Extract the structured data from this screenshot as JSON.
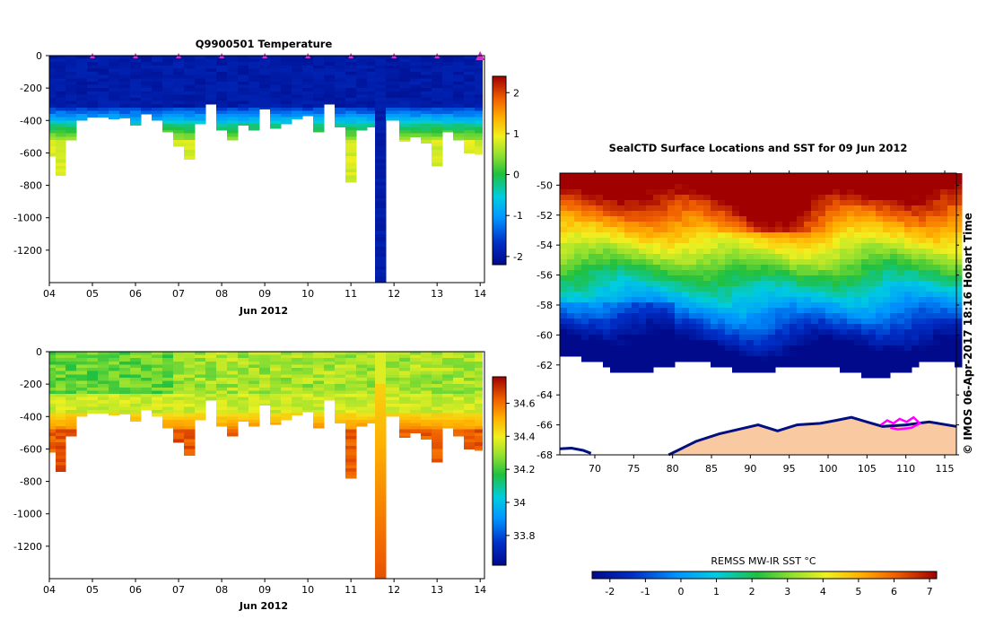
{
  "chart_data": [
    {
      "type": "heatmap",
      "title": "Q9900501  Temperature",
      "xlabel": "Jun 2012",
      "ylabel": "",
      "x_ticks": [
        "04",
        "05",
        "06",
        "07",
        "08",
        "09",
        "10",
        "11",
        "12",
        "13",
        "14"
      ],
      "xlim": [
        4,
        14.1
      ],
      "y_ticks": [
        "0",
        "-200",
        "-400",
        "-600",
        "-800",
        "-1000",
        "-1200"
      ],
      "ylim": [
        -1400,
        0
      ],
      "surfacing_markers_day": [
        5,
        6,
        7,
        8,
        9,
        10,
        11,
        12,
        13,
        14
      ],
      "colorbar": {
        "ticks": [
          "2",
          "1",
          "0",
          "-1",
          "-2"
        ],
        "range": [
          -2.2,
          2.4
        ]
      },
      "profiles": [
        {
          "day": 4.05,
          "max_depth": 620
        },
        {
          "day": 4.25,
          "max_depth": 740
        },
        {
          "day": 4.5,
          "max_depth": 520
        },
        {
          "day": 4.75,
          "max_depth": 400
        },
        {
          "day": 5.0,
          "max_depth": 380
        },
        {
          "day": 5.25,
          "max_depth": 380
        },
        {
          "day": 5.5,
          "max_depth": 390
        },
        {
          "day": 5.75,
          "max_depth": 385
        },
        {
          "day": 6.0,
          "max_depth": 430
        },
        {
          "day": 6.25,
          "max_depth": 360
        },
        {
          "day": 6.5,
          "max_depth": 400
        },
        {
          "day": 6.75,
          "max_depth": 470
        },
        {
          "day": 7.0,
          "max_depth": 560
        },
        {
          "day": 7.25,
          "max_depth": 640
        },
        {
          "day": 7.5,
          "max_depth": 420
        },
        {
          "day": 7.75,
          "max_depth": 300
        },
        {
          "day": 8.0,
          "max_depth": 460
        },
        {
          "day": 8.25,
          "max_depth": 520
        },
        {
          "day": 8.5,
          "max_depth": 430
        },
        {
          "day": 8.75,
          "max_depth": 460
        },
        {
          "day": 9.0,
          "max_depth": 330
        },
        {
          "day": 9.25,
          "max_depth": 450
        },
        {
          "day": 9.5,
          "max_depth": 420
        },
        {
          "day": 9.75,
          "max_depth": 390
        },
        {
          "day": 10.0,
          "max_depth": 370
        },
        {
          "day": 10.25,
          "max_depth": 470
        },
        {
          "day": 10.5,
          "max_depth": 300
        },
        {
          "day": 10.75,
          "max_depth": 440
        },
        {
          "day": 11.0,
          "max_depth": 780
        },
        {
          "day": 11.25,
          "max_depth": 460
        },
        {
          "day": 11.5,
          "max_depth": 440
        },
        {
          "day": 11.62,
          "max_depth": 1400
        },
        {
          "day": 12.0,
          "max_depth": 400
        },
        {
          "day": 12.25,
          "max_depth": 530
        },
        {
          "day": 12.5,
          "max_depth": 500
        },
        {
          "day": 12.75,
          "max_depth": 540
        },
        {
          "day": 13.0,
          "max_depth": 680
        },
        {
          "day": 13.25,
          "max_depth": 470
        },
        {
          "day": 13.5,
          "max_depth": 520
        },
        {
          "day": 13.75,
          "max_depth": 600
        },
        {
          "day": 14.0,
          "max_depth": 610
        }
      ]
    },
    {
      "type": "heatmap",
      "title": "",
      "xlabel": "Jun 2012",
      "ylabel": "",
      "x_ticks": [
        "04",
        "05",
        "06",
        "07",
        "08",
        "09",
        "10",
        "11",
        "12",
        "13",
        "14"
      ],
      "xlim": [
        4,
        14.1
      ],
      "y_ticks": [
        "0",
        "-200",
        "-400",
        "-600",
        "-800",
        "-1000",
        "-1200"
      ],
      "ylim": [
        -1400,
        0
      ],
      "colorbar": {
        "ticks": [
          "34.6",
          "34.4",
          "34.2",
          "34",
          "33.8"
        ],
        "range": [
          33.62,
          34.76
        ]
      },
      "profiles_same_as": "temperature"
    },
    {
      "type": "heatmap",
      "title": "SealCTD Surface Locations and SST for 09 Jun 2012",
      "xlabel": "",
      "ylabel": "",
      "x_ticks": [
        "70",
        "75",
        "80",
        "85",
        "90",
        "95",
        "100",
        "105",
        "110",
        "115"
      ],
      "xlim": [
        65.5,
        116.5
      ],
      "y_ticks": [
        "-50",
        "-52",
        "-54",
        "-56",
        "-58",
        "-60",
        "-62",
        "-64",
        "-66",
        "-68"
      ],
      "ylim": [
        -68,
        -49.2
      ],
      "colorbar": {
        "label": "REMSS MW-IR SST °C",
        "ticks": [
          "-2",
          "-1",
          "0",
          "1",
          "2",
          "3",
          "4",
          "5",
          "6",
          "7"
        ],
        "range": [
          -2.5,
          7.2
        ]
      },
      "vertical_text": "© IMOS 06-Apr-2017 18:16 Hobart Time"
    }
  ],
  "colors": {
    "land": "#F9C9A2",
    "coast": "#001080",
    "track": "#ff00ff",
    "marker": "#cc33cc"
  }
}
